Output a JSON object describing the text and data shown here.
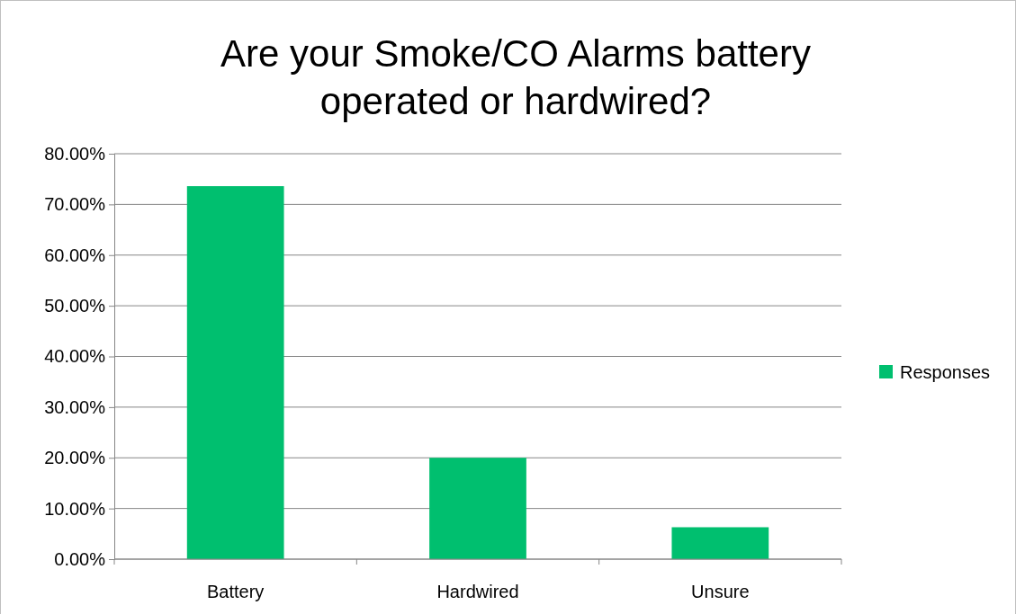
{
  "chart_data": {
    "type": "bar",
    "title": "Are your Smoke/CO Alarms battery operated or hardwired?",
    "categories": [
      "Battery",
      "Hardwired",
      "Unsure"
    ],
    "series": [
      {
        "name": "Responses",
        "color": "#00bf6f",
        "values": [
          73.6,
          20.0,
          6.3
        ]
      }
    ],
    "ylim": [
      0,
      80
    ],
    "yticks": [
      {
        "value": 0,
        "label": "0.00%"
      },
      {
        "value": 10,
        "label": "10.00%"
      },
      {
        "value": 20,
        "label": "20.00%"
      },
      {
        "value": 30,
        "label": "30.00%"
      },
      {
        "value": 40,
        "label": "40.00%"
      },
      {
        "value": 50,
        "label": "50.00%"
      },
      {
        "value": 60,
        "label": "60.00%"
      },
      {
        "value": 70,
        "label": "70.00%"
      },
      {
        "value": 80,
        "label": "80.00%"
      }
    ],
    "grid": "y",
    "legend": "right"
  }
}
